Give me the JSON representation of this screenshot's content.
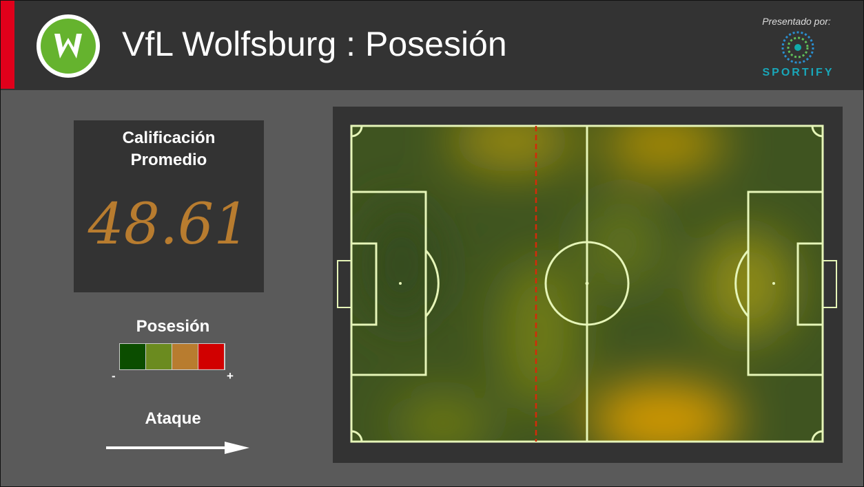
{
  "header": {
    "title": "VfL Wolfsburg",
    "separator": ":",
    "subtitle": "Posesión",
    "sponsor_label": "Presentado por:",
    "sponsor": "SPORTIFY"
  },
  "rating": {
    "label_line1": "Calificación",
    "label_line2": "Promedio",
    "value": "48.61"
  },
  "legend": {
    "title": "Posesión",
    "colors": [
      "#0b4d00",
      "#6b8b1f",
      "#b87c2f",
      "#d10000"
    ],
    "low": "-",
    "high": "+"
  },
  "direction": {
    "label": "Ataque"
  }
}
